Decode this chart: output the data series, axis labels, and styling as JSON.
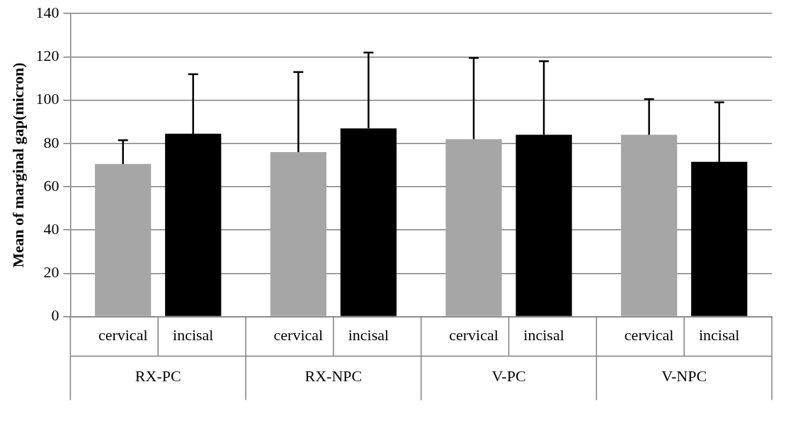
{
  "chart_data": {
    "type": "bar",
    "ylabel": "Mean of marginal gap(micron)",
    "categories": [
      "RX-PC",
      "RX-NPC",
      "V-PC",
      "V-NPC"
    ],
    "series": [
      {
        "name": "cervical",
        "color": "#a6a6a6",
        "values": [
          70.5,
          76,
          82,
          84
        ],
        "errors": [
          [
            70.5,
            81.5
          ],
          [
            76,
            113
          ],
          [
            82,
            119.5
          ],
          [
            84,
            100.5
          ]
        ]
      },
      {
        "name": "incisal",
        "color": "#000000",
        "values": [
          84.5,
          87,
          84,
          71.5
        ],
        "errors": [
          [
            84.5,
            112
          ],
          [
            87,
            122
          ],
          [
            84,
            118
          ],
          [
            71.5,
            99
          ]
        ]
      }
    ],
    "ylim": [
      0,
      140
    ],
    "yticks": [
      0,
      20,
      40,
      60,
      80,
      100,
      120,
      140
    ],
    "grid": "y",
    "legend": false
  }
}
